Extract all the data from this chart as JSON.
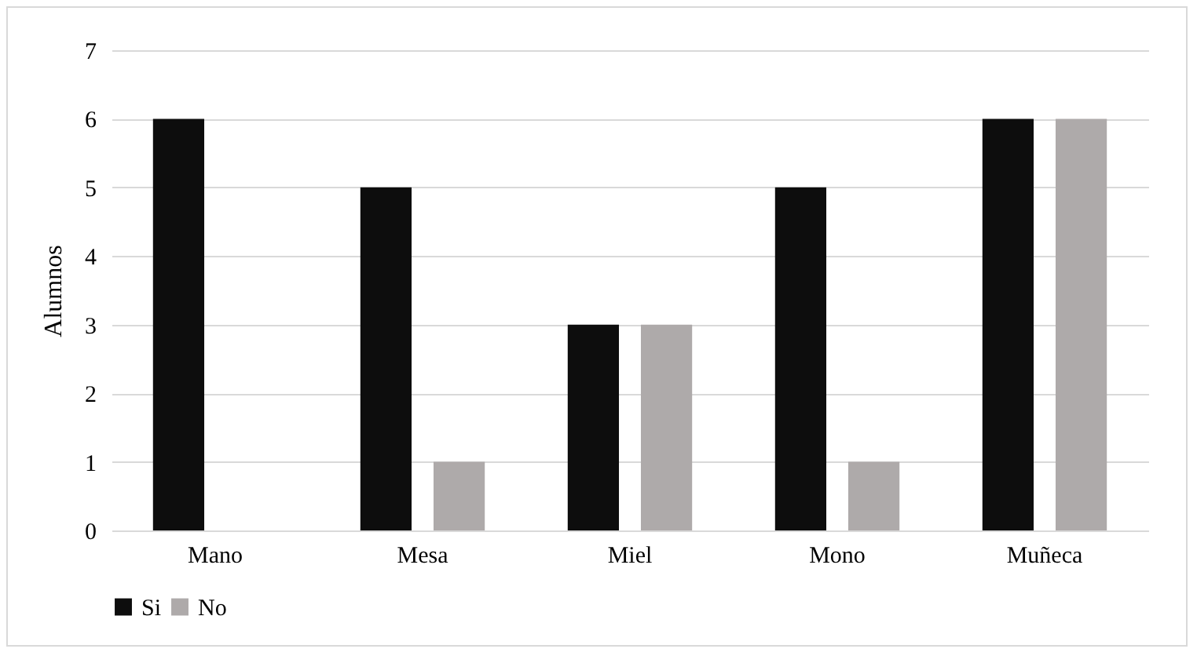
{
  "chart_data": {
    "type": "bar",
    "ylabel": "Alumnos",
    "categories": [
      "Mano",
      "Mesa",
      "Miel",
      "Mono",
      "Muñeca"
    ],
    "series": [
      {
        "name": "Si",
        "color": "#0d0d0d",
        "values": [
          6,
          5,
          3,
          5,
          6
        ]
      },
      {
        "name": "No",
        "color": "#aeaaaa",
        "values": [
          0,
          1,
          3,
          1,
          6
        ]
      }
    ],
    "ylim": [
      0,
      7
    ],
    "yticks": [
      0,
      1,
      2,
      3,
      4,
      5,
      6,
      7
    ],
    "grid": "y",
    "legend": "bottom"
  }
}
